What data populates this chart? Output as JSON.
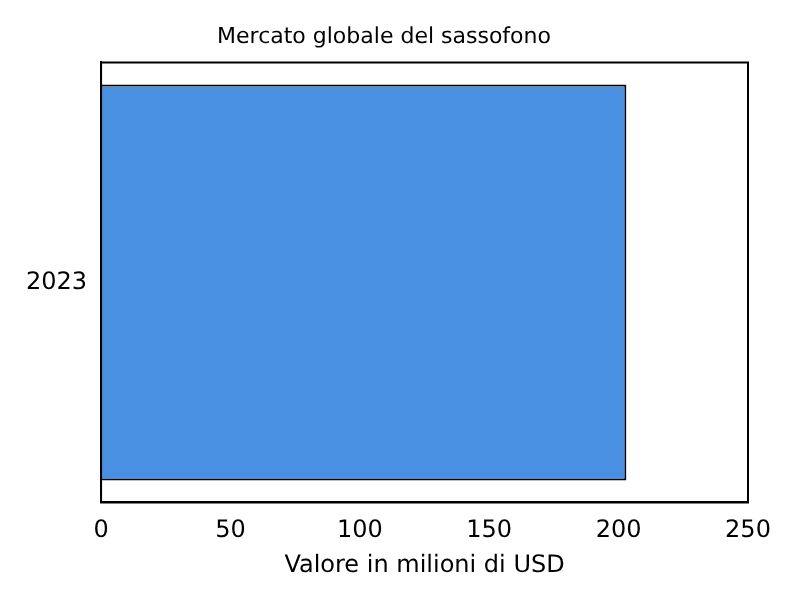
{
  "chart_data": {
    "type": "bar",
    "orientation": "horizontal",
    "title": "Mercato globale del sassofono",
    "xlabel": "Valore in milioni di USD",
    "categories": [
      "2023"
    ],
    "values": [
      203
    ],
    "color": "#4a90e2",
    "xlim": [
      0,
      250
    ],
    "xticks": [
      0,
      50,
      100,
      150,
      200,
      250
    ],
    "grid": false,
    "legend": false
  }
}
